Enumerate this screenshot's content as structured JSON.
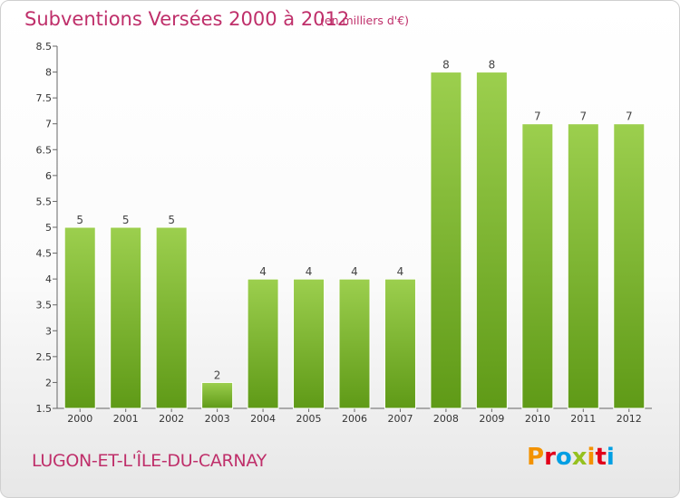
{
  "header": {
    "title": "Subventions Versées 2000 à 2012",
    "subtitle": "(en milliers d'€)"
  },
  "footer": {
    "commune": "LUGON-ET-L'ÎLE-DU-CARNAY",
    "logo_text": "Proxiti",
    "logo_colors": [
      "#f39200",
      "#e2001a",
      "#009fe3",
      "#95c11f",
      "#f39200",
      "#e2001a",
      "#009fe3"
    ]
  },
  "chart_data": {
    "type": "bar",
    "title": "Subventions Versées 2000 à 2012",
    "subtitle": "(en milliers d'€)",
    "xlabel": "",
    "ylabel": "",
    "categories": [
      "2000",
      "2001",
      "2002",
      "2003",
      "2004",
      "2005",
      "2006",
      "2007",
      "2008",
      "2009",
      "2010",
      "2011",
      "2012"
    ],
    "values": [
      5,
      5,
      5,
      2,
      4,
      4,
      4,
      4,
      8,
      8,
      7,
      7,
      7
    ],
    "data_labels": [
      "5",
      "5",
      "5",
      "2",
      "4",
      "4",
      "4",
      "4",
      "8",
      "8",
      "7",
      "7",
      "7"
    ],
    "ylim": [
      1.5,
      8.5
    ],
    "yticks": [
      1.5,
      2,
      2.5,
      3,
      3.5,
      4,
      4.5,
      5,
      5.5,
      6,
      6.5,
      7,
      7.5,
      8,
      8.5
    ],
    "ytick_labels": [
      "1.5",
      "2",
      "2.5",
      "3",
      "3.5",
      "4",
      "4.5",
      "5",
      "5.5",
      "6",
      "6.5",
      "7",
      "7.5",
      "8",
      "8.5"
    ],
    "grid": false,
    "bar_color_top": "#9ccf4e",
    "bar_color_bottom": "#5f9a17"
  }
}
